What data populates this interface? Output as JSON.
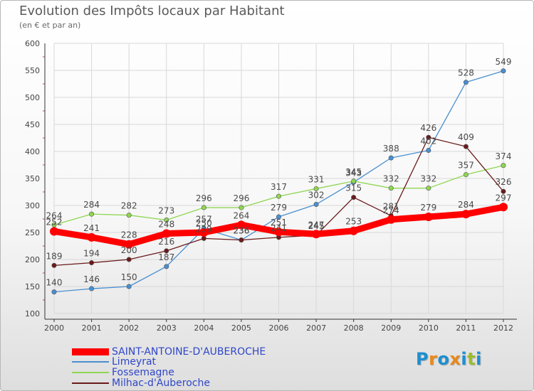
{
  "header": {
    "title": "Evolution des Impôts locaux par Habitant",
    "subtitle": "(en € et par an)"
  },
  "logo": {
    "text": "Proxiti",
    "letters": [
      "P",
      "r",
      "o",
      "x",
      "i",
      "t",
      "i"
    ],
    "colors": [
      "#1d8fd0",
      "#e8891d",
      "#1d8fd0",
      "#e8891d",
      "#1d8fd0",
      "#9bbd2b",
      "#1d8fd0"
    ]
  },
  "chart_data": {
    "type": "line",
    "title": "Evolution des Impôts locaux par Habitant",
    "subtitle": "(en € et par an)",
    "x": [
      "2000",
      "2001",
      "2002",
      "2003",
      "2004",
      "2005",
      "2006",
      "2007",
      "2008",
      "2009",
      "2010",
      "2011",
      "2012"
    ],
    "ylim": [
      100,
      600
    ],
    "yticks": [
      100,
      150,
      200,
      250,
      300,
      350,
      400,
      450,
      500,
      550,
      600
    ],
    "grid": true,
    "legend_position": "bottom-left",
    "series": [
      {
        "name": "SAINT-ANTOINE-D'AUBEROCHE",
        "color": "#ff0000",
        "values": [
          252,
          241,
          228,
          248,
          250,
          264,
          251,
          247,
          253,
          274,
          279,
          284,
          297
        ],
        "labels": [
          "252",
          "241",
          "228",
          "248",
          "250",
          "264",
          "251",
          "247",
          "253",
          "274",
          "279",
          "284",
          "297"
        ]
      },
      {
        "name": "Limeyrat",
        "color": "#4a8fd0",
        "values": [
          140,
          146,
          150,
          187,
          257,
          236,
          279,
          302,
          343,
          388,
          402,
          528,
          549
        ],
        "labels": [
          "140",
          "146",
          "150",
          "187",
          "257",
          "236",
          "279",
          "302",
          "343",
          "388",
          "402",
          "528",
          "549"
        ]
      },
      {
        "name": "Fossemagne",
        "color": "#8fd652",
        "values": [
          264,
          284,
          282,
          273,
          296,
          296,
          317,
          331,
          345,
          332,
          332,
          357,
          374
        ],
        "labels": [
          "264",
          "284",
          "282",
          "273",
          "296",
          "296",
          "317",
          "331",
          "345",
          "332",
          "332",
          "357",
          "374"
        ]
      },
      {
        "name": "Milhac-d'Auberoche",
        "color": "#6b1a1a",
        "values": [
          189,
          194,
          200,
          216,
          239,
          236,
          241,
          245,
          315,
          281,
          426,
          409,
          326
        ],
        "labels": [
          "189",
          "194",
          "200",
          "216",
          "239",
          "236",
          "241",
          "245",
          "315",
          "281",
          "426",
          "409",
          "326"
        ]
      }
    ]
  }
}
